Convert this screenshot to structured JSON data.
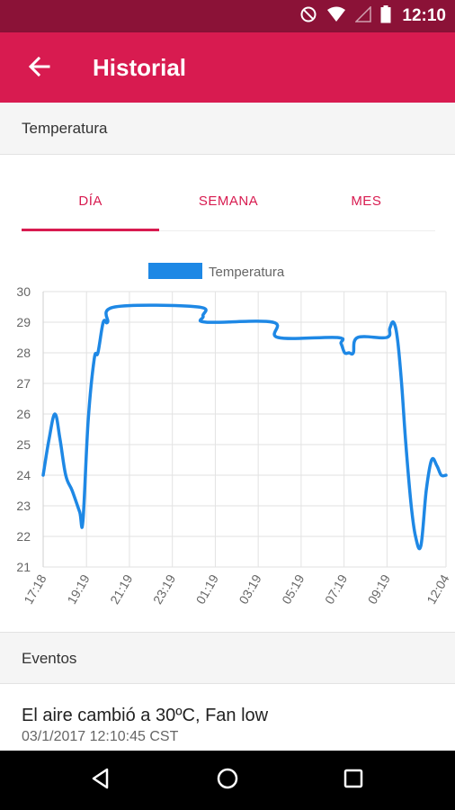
{
  "status_bar": {
    "time": "12:10",
    "icons": [
      "do-not-disturb-icon",
      "wifi-icon",
      "signal-icon",
      "battery-icon"
    ]
  },
  "app_bar": {
    "title": "Historial",
    "back_icon": "arrow-left-icon"
  },
  "sections": {
    "temperature": "Temperatura",
    "events": "Eventos"
  },
  "tabs": [
    {
      "label": "DÍA",
      "active": true
    },
    {
      "label": "SEMANA",
      "active": false
    },
    {
      "label": "MES",
      "active": false
    }
  ],
  "chart_data": {
    "type": "line",
    "legend": "top",
    "grid": true,
    "ylim": [
      21,
      30
    ],
    "yticks": [
      21,
      22,
      23,
      24,
      25,
      26,
      27,
      28,
      29,
      30
    ],
    "xlim": [
      0,
      18.77
    ],
    "x_ticks": [
      {
        "label": "17:18",
        "x": 0
      },
      {
        "label": "19:19",
        "x": 2.02
      },
      {
        "label": "21:19",
        "x": 4.02
      },
      {
        "label": "23:19",
        "x": 6.02
      },
      {
        "label": "01:19",
        "x": 8.02
      },
      {
        "label": "03:19",
        "x": 10.02
      },
      {
        "label": "05:19",
        "x": 12.02
      },
      {
        "label": "07:19",
        "x": 14.02
      },
      {
        "label": "09:19",
        "x": 16.02
      },
      {
        "label": "12:04",
        "x": 18.77
      }
    ],
    "series": [
      {
        "name": "Temperatura",
        "color": "#1e88e5",
        "x": [
          0,
          0.28,
          0.55,
          0.78,
          1.05,
          1.35,
          1.7,
          1.85,
          2.1,
          2.38,
          2.55,
          2.8,
          3.0,
          3.35,
          7.2,
          7.45,
          7.6,
          10.7,
          10.95,
          13.7,
          13.88,
          14.05,
          14.25,
          14.45,
          14.65,
          16.0,
          16.15,
          16.32,
          16.5,
          16.7,
          16.9,
          17.15,
          17.35,
          17.6,
          17.85,
          18.1,
          18.35,
          18.55,
          18.77
        ],
        "y": [
          24.0,
          25.2,
          26.0,
          25.2,
          24.0,
          23.5,
          22.8,
          22.5,
          25.8,
          27.8,
          28.0,
          29.0,
          29.0,
          29.5,
          29.5,
          29.2,
          29.0,
          29.0,
          28.5,
          28.5,
          28.3,
          28.0,
          28.0,
          28.0,
          28.5,
          28.5,
          28.8,
          29.0,
          28.5,
          27.0,
          25.0,
          23.0,
          22.0,
          21.7,
          23.5,
          24.5,
          24.3,
          24.0,
          24.0
        ]
      }
    ]
  },
  "events": [
    {
      "text": "El aire cambió a 30ºC, Fan low",
      "time": "03/1/2017 12:10:45 CST"
    }
  ],
  "nav_bar": {
    "icons": [
      "back-triangle-icon",
      "home-circle-icon",
      "recents-square-icon"
    ]
  }
}
